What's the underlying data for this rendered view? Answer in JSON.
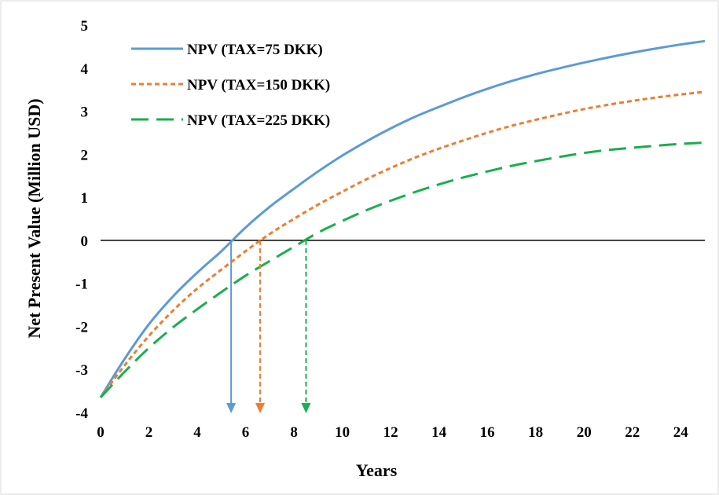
{
  "chart_data": {
    "type": "line",
    "title": "",
    "xlabel": "Years",
    "ylabel": "Net Present Value (Million USD)",
    "xlim": [
      0,
      25
    ],
    "ylim": [
      -4,
      5
    ],
    "xticks": [
      0,
      2,
      4,
      6,
      8,
      10,
      12,
      14,
      16,
      18,
      20,
      22,
      24
    ],
    "yticks": [
      5,
      4,
      3,
      2,
      1,
      0,
      -1,
      -2,
      -3,
      -4
    ],
    "grid": false,
    "legend_position": "top-left",
    "x": [
      0,
      1,
      2,
      3,
      4,
      5,
      6,
      7,
      8,
      9,
      10,
      11,
      12,
      13,
      14,
      15,
      16,
      17,
      18,
      19,
      20,
      21,
      22,
      23,
      24,
      25
    ],
    "series": [
      {
        "name": "NPV (TAX=75 DKK)",
        "color": "#5b9bd5",
        "dash": "solid",
        "values": [
          -3.65,
          -2.75,
          -1.95,
          -1.3,
          -0.75,
          -0.25,
          0.3,
          0.78,
          1.2,
          1.6,
          1.97,
          2.3,
          2.6,
          2.87,
          3.1,
          3.32,
          3.52,
          3.7,
          3.86,
          4.0,
          4.13,
          4.25,
          4.36,
          4.46,
          4.55,
          4.63
        ],
        "break_even": 5.4
      },
      {
        "name": "NPV (TAX=150 DKK)",
        "color": "#ed7d31",
        "dash": "short",
        "values": [
          -3.65,
          -2.9,
          -2.22,
          -1.63,
          -1.12,
          -0.68,
          -0.25,
          0.15,
          0.5,
          0.83,
          1.13,
          1.42,
          1.68,
          1.92,
          2.13,
          2.32,
          2.5,
          2.66,
          2.8,
          2.93,
          3.05,
          3.15,
          3.24,
          3.32,
          3.39,
          3.45
        ],
        "break_even": 6.6
      },
      {
        "name": "NPV (TAX=225 DKK)",
        "color": "#1aae4e",
        "dash": "long",
        "values": [
          -3.65,
          -3.05,
          -2.5,
          -2.02,
          -1.6,
          -1.2,
          -0.82,
          -0.48,
          -0.15,
          0.18,
          0.45,
          0.7,
          0.92,
          1.12,
          1.3,
          1.46,
          1.6,
          1.73,
          1.84,
          1.94,
          2.03,
          2.1,
          2.15,
          2.2,
          2.24,
          2.27
        ],
        "break_even": 8.5
      }
    ]
  }
}
